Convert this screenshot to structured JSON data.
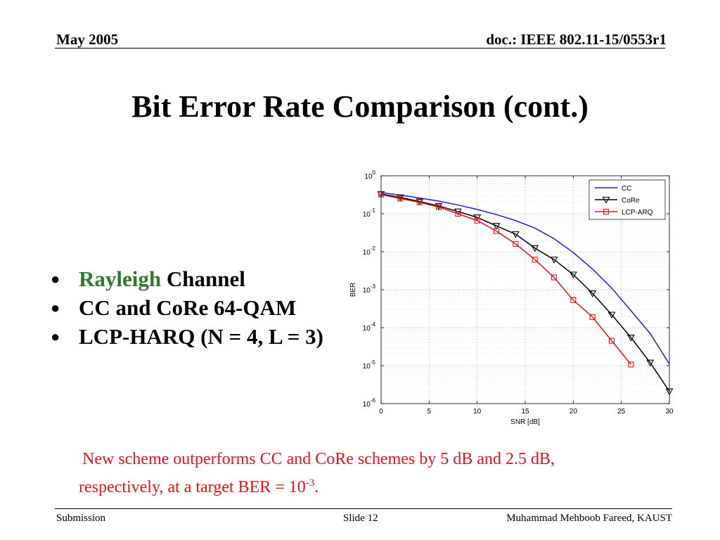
{
  "header": {
    "date": "May 2005",
    "doc": "doc.: IEEE 802.11-15/0553r1"
  },
  "slide_title": "Bit Error Rate Comparison (cont.)",
  "bullets": [
    {
      "highlight": "Rayleigh",
      "text": " Channel"
    },
    {
      "highlight": "",
      "text": "CC and CoRe 64-QAM"
    },
    {
      "highlight": "",
      "text": "LCP-HARQ (N = 4, L = 3)"
    }
  ],
  "note": {
    "line1": "New scheme outperforms CC and CoRe schemes by 5 dB and 2.5 dB,",
    "line2_before": "respectively, at a target BER = 10",
    "line2_sup": "-3",
    "line2_after": "."
  },
  "footer": {
    "left": "Submission",
    "center": "Slide 12",
    "right": "Muhammad Mehboob Fareed, KAUST"
  },
  "chart_data": {
    "type": "line",
    "xlabel": "SNR [dB]",
    "ylabel": "BER",
    "xlim": [
      0,
      30
    ],
    "ylim": [
      1e-06,
      1
    ],
    "yscale": "log",
    "grid": true,
    "legend_position": "top-right",
    "xticks": [
      "0",
      "5",
      "10",
      "15",
      "20",
      "25",
      "30"
    ],
    "yticks": [
      {
        "base": "10",
        "exp": "0"
      },
      {
        "base": "10",
        "exp": "-1"
      },
      {
        "base": "10",
        "exp": "-2"
      },
      {
        "base": "10",
        "exp": "-3"
      },
      {
        "base": "10",
        "exp": "-4"
      },
      {
        "base": "10",
        "exp": "-5"
      },
      {
        "base": "10",
        "exp": "-6"
      }
    ],
    "series": [
      {
        "name": "CC",
        "color": "#1a1aff",
        "marker": "none",
        "x": [
          0,
          2,
          4,
          6,
          8,
          10,
          12,
          14,
          16,
          18,
          20,
          22,
          24,
          26,
          28,
          30
        ],
        "y": [
          0.36,
          0.31,
          0.26,
          0.215,
          0.17,
          0.13,
          0.095,
          0.066,
          0.042,
          0.022,
          0.0095,
          0.0035,
          0.0011,
          0.00028,
          7e-05,
          1.1e-05
        ]
      },
      {
        "name": "CoRe",
        "color": "#000000",
        "marker": "triangle-down",
        "x": [
          0,
          2,
          4,
          6,
          8,
          10,
          12,
          14,
          16,
          18,
          20,
          22,
          24,
          26,
          28,
          30
        ],
        "y": [
          0.33,
          0.27,
          0.21,
          0.16,
          0.115,
          0.08,
          0.048,
          0.029,
          0.0125,
          0.0062,
          0.0025,
          0.0008,
          0.00022,
          5.5e-05,
          1.2e-05,
          2.1e-06
        ]
      },
      {
        "name": "LCP-ARQ",
        "color": "#e8151a",
        "marker": "square",
        "x": [
          0,
          2,
          4,
          6,
          8,
          10,
          12,
          14,
          16,
          18,
          20,
          22,
          24,
          26
        ],
        "y": [
          0.32,
          0.25,
          0.2,
          0.15,
          0.1,
          0.066,
          0.035,
          0.016,
          0.0062,
          0.0021,
          0.00053,
          0.00019,
          4.5e-05,
          1.07e-05
        ]
      }
    ]
  }
}
